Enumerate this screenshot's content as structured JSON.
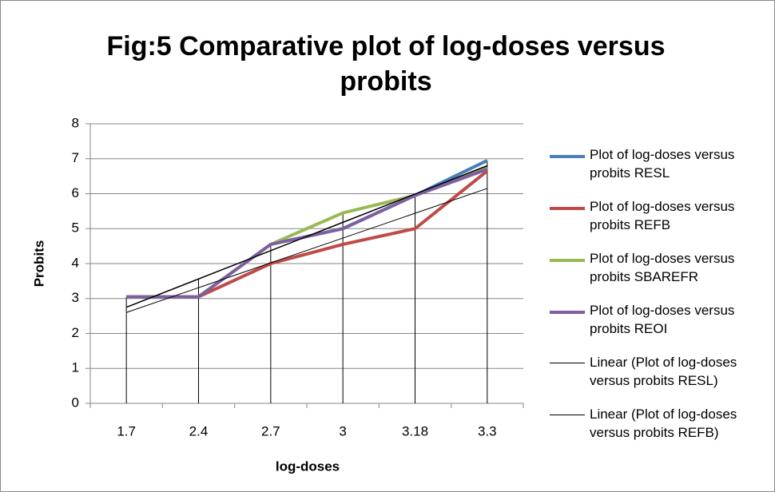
{
  "chart_data": {
    "type": "line",
    "title": "Fig:5 Comparative plot of log-doses versus probits",
    "x_label": "log-doses",
    "y_label": "Probits",
    "categories": [
      "1.7",
      "2.4",
      "2.7",
      "3",
      "3.18",
      "3.3"
    ],
    "ylim": [
      0,
      8
    ],
    "yticks": [
      0,
      1,
      2,
      3,
      4,
      5,
      6,
      7,
      8
    ],
    "grid": true,
    "legend": "right",
    "series": [
      {
        "name": "Plot of log-doses versus probits RESL",
        "color": "#4a7ebb",
        "width": 4,
        "values": [
          3.05,
          3.05,
          4.55,
          5.0,
          5.95,
          6.95
        ]
      },
      {
        "name": "Plot of log-doses versus probits REFB",
        "color": "#be4b48",
        "width": 4,
        "values": [
          3.05,
          3.05,
          4.0,
          4.55,
          5.0,
          6.65
        ]
      },
      {
        "name": "Plot of log-doses versus probits SBAREFR",
        "color": "#98b954",
        "width": 4,
        "values": [
          3.05,
          3.05,
          4.55,
          5.45,
          5.95,
          6.75
        ]
      },
      {
        "name": "Plot of log-doses versus probits REOI",
        "color": "#7d60a0",
        "width": 4,
        "values": [
          3.05,
          3.05,
          4.55,
          5.0,
          5.95,
          6.7
        ]
      },
      {
        "name": "Linear (Plot of log-doses versus probits RESL)",
        "color": "#000000",
        "width": 1.5,
        "values": [
          2.75,
          3.56,
          4.37,
          5.18,
          5.99,
          6.8
        ]
      },
      {
        "name": "Linear (Plot of log-doses versus probits REFB)",
        "color": "#000000",
        "width": 1,
        "values": [
          2.6,
          3.31,
          4.02,
          4.73,
          5.44,
          6.15
        ]
      }
    ]
  }
}
